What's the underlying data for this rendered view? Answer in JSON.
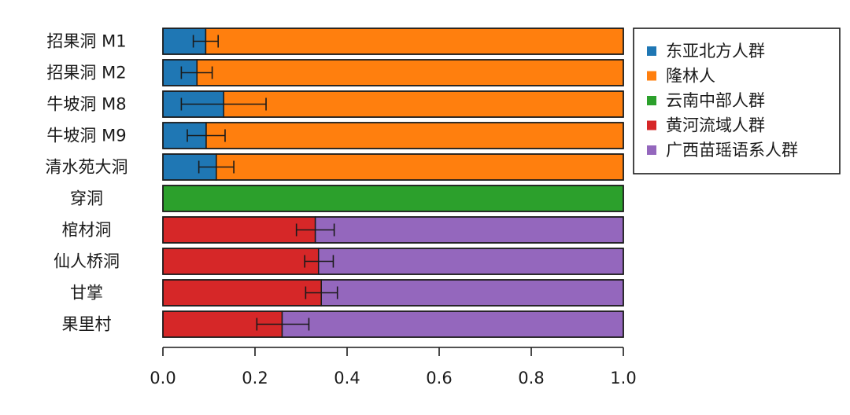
{
  "chart_data": {
    "type": "bar",
    "orientation": "horizontal",
    "stacked": true,
    "categories": [
      "招果洞 M1",
      "招果洞 M2",
      "牛坡洞 M8",
      "牛坡洞 M9",
      "清水苑大洞",
      "穿洞",
      "棺材洞",
      "仙人桥洞",
      "甘掌",
      "果里村"
    ],
    "series": [
      {
        "name": "东亚北方人群",
        "color": "#1f77b4",
        "values": [
          0.093,
          0.074,
          0.132,
          0.094,
          0.116,
          0,
          0,
          0,
          0,
          0
        ]
      },
      {
        "name": "隆林人",
        "color": "#ff7f0e",
        "values": [
          0.907,
          0.926,
          0.868,
          0.906,
          0.884,
          0,
          0,
          0,
          0,
          0
        ]
      },
      {
        "name": "云南中部人群",
        "color": "#2ca02c",
        "values": [
          0,
          0,
          0,
          0,
          0,
          1.0,
          0,
          0,
          0,
          0
        ]
      },
      {
        "name": "黄河流域人群",
        "color": "#d62728",
        "values": [
          0,
          0,
          0,
          0,
          0,
          0,
          0.331,
          0.338,
          0.344,
          0.259
        ]
      },
      {
        "name": "广西苗瑶语系人群",
        "color": "#9467bd",
        "values": [
          0,
          0,
          0,
          0,
          0,
          0,
          0.669,
          0.662,
          0.656,
          0.741
        ]
      }
    ],
    "error_bars": [
      [
        0.066,
        0.12
      ],
      [
        0.04,
        0.107
      ],
      [
        0.04,
        0.224
      ],
      [
        0.053,
        0.135
      ],
      [
        0.078,
        0.154
      ],
      null,
      [
        0.29,
        0.372
      ],
      [
        0.308,
        0.37
      ],
      [
        0.31,
        0.379
      ],
      [
        0.204,
        0.317
      ]
    ],
    "xlim": [
      0,
      1
    ],
    "x_ticks": [
      "0.0",
      "0.2",
      "0.4",
      "0.6",
      "0.8",
      "1.0"
    ],
    "xlabel": "",
    "ylabel": "",
    "title": "",
    "legend_position": "top-right",
    "grid": false
  }
}
